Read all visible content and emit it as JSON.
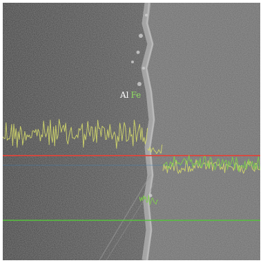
{
  "labels": {
    "element_a": "Al",
    "element_b": "Fe"
  },
  "colors": {
    "background": "#ffffff",
    "left_region": "#4a4a4a",
    "right_region": "#6d6d6d",
    "boundary": "#9a9a9a",
    "trace_a": "#d4d96a",
    "trace_b": "#7fd04a",
    "ref_red": "#e0443a",
    "ref_green": "#56c23c",
    "label_a": "#ffffff",
    "label_b": "#8fe060"
  }
}
